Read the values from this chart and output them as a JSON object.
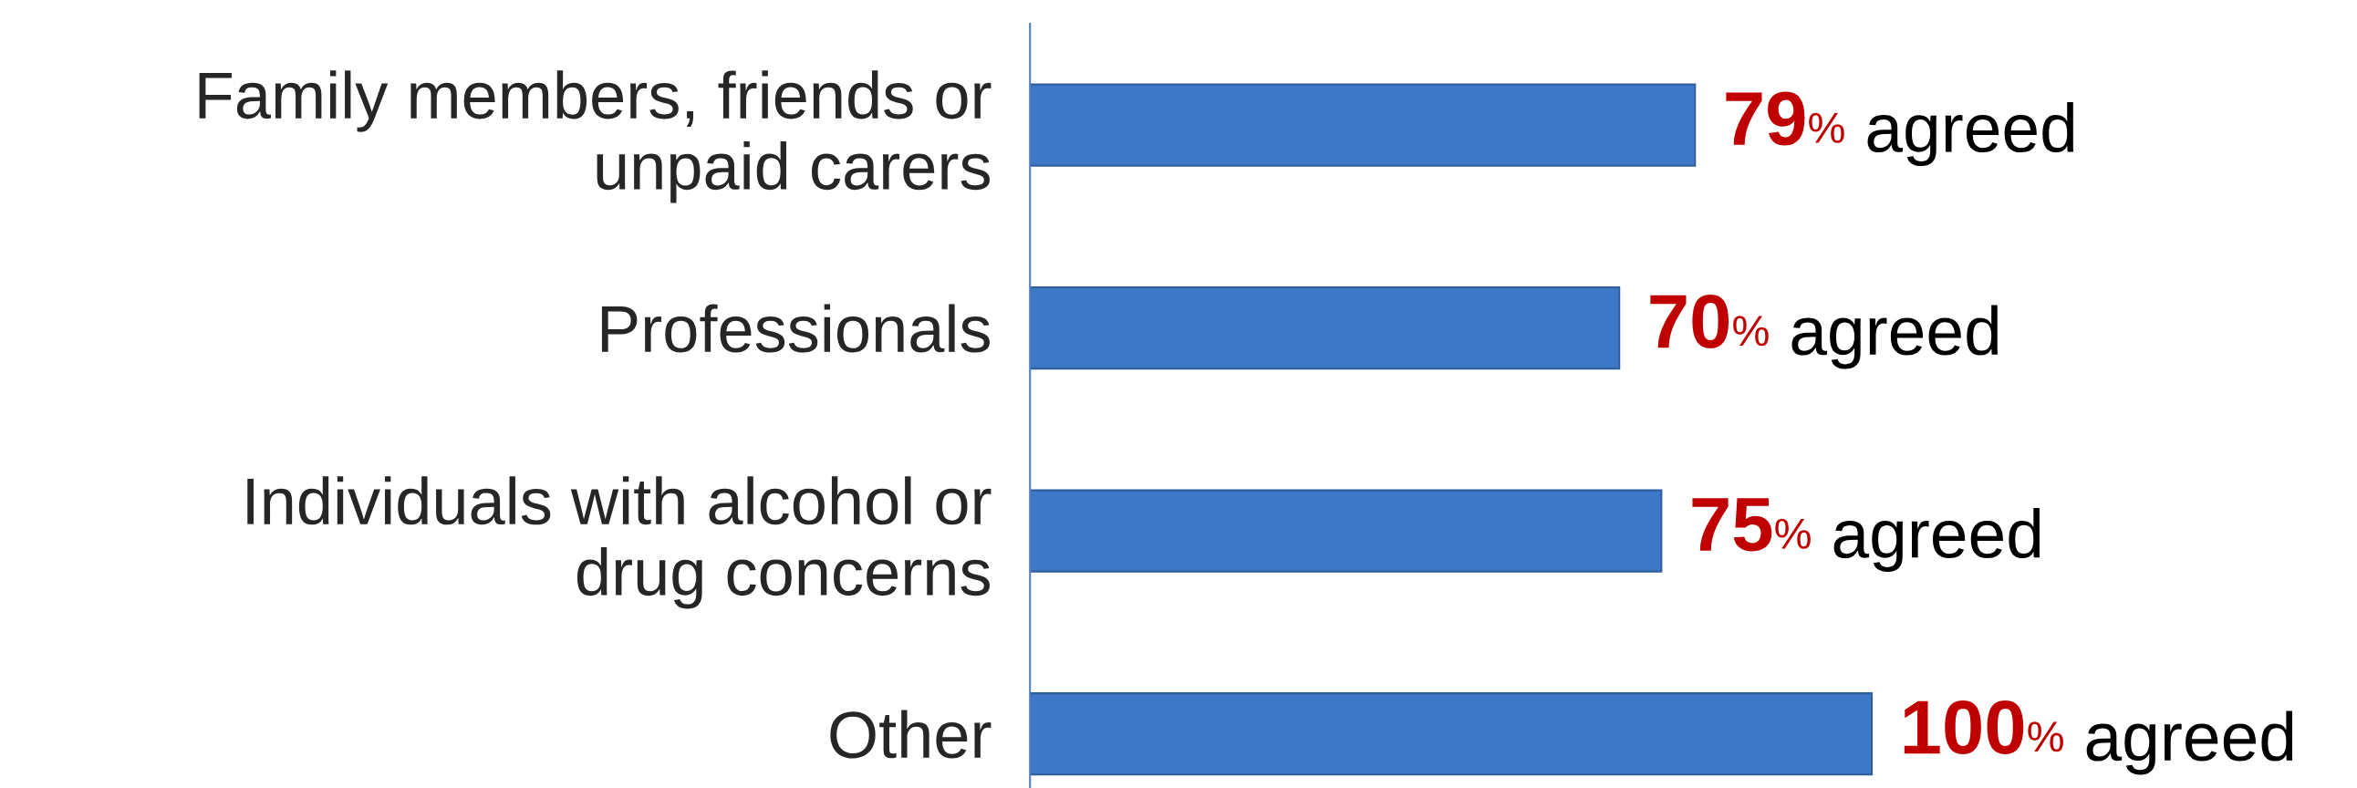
{
  "chart_data": {
    "type": "bar",
    "orientation": "horizontal",
    "categories": [
      "Family members, friends or\nunpaid carers",
      "Professionals",
      "Individuals with alcohol or\ndrug concerns",
      "Other"
    ],
    "values": [
      79,
      70,
      75,
      100
    ],
    "value_labels": [
      "79% agreed",
      "70% agreed",
      "75% agreed",
      "100% agreed"
    ],
    "color": "#3f78c6",
    "tick_labels": "y",
    "grid": false,
    "legend": false
  }
}
